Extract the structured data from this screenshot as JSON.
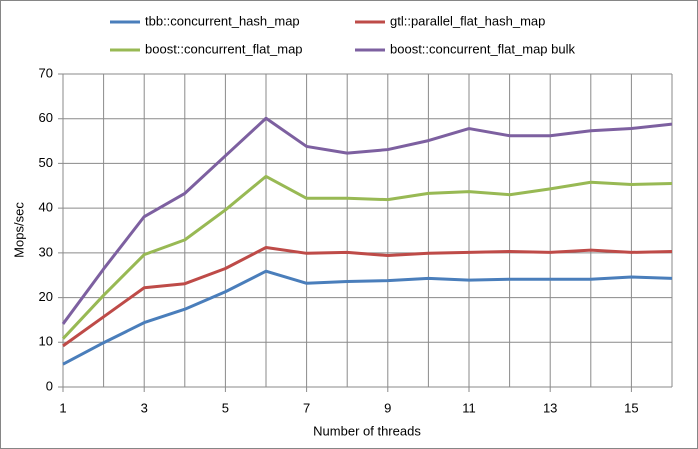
{
  "chart_data": {
    "type": "line",
    "xlabel": "Number of threads",
    "ylabel": "Mops/sec",
    "x": [
      1,
      2,
      3,
      4,
      5,
      6,
      7,
      8,
      9,
      10,
      11,
      12,
      13,
      14,
      15,
      16
    ],
    "xlim": [
      1,
      16
    ],
    "xticks": [
      1,
      3,
      5,
      7,
      9,
      11,
      13,
      15
    ],
    "ylim": [
      0,
      70
    ],
    "yticks": [
      0,
      10,
      20,
      30,
      40,
      50,
      60,
      70
    ],
    "grid": true,
    "series": [
      {
        "name": "tbb::concurrent_hash_map",
        "color": "#4a7ebb",
        "values": [
          5.1,
          9.9,
          14.4,
          17.4,
          21.3,
          25.9,
          23.2,
          23.6,
          23.8,
          24.3,
          23.9,
          24.1,
          24.1,
          24.1,
          24.6,
          24.3
        ]
      },
      {
        "name": "gtl::parallel_flat_hash_map",
        "color": "#be4b48",
        "values": [
          9.2,
          15.7,
          22.2,
          23.1,
          26.5,
          31.2,
          29.9,
          30.1,
          29.4,
          29.9,
          30.1,
          30.3,
          30.1,
          30.6,
          30.1,
          30.3
        ]
      },
      {
        "name": "boost::concurrent_flat_map",
        "color": "#98b954",
        "values": [
          10.8,
          20.5,
          29.6,
          32.9,
          39.6,
          47.1,
          42.2,
          42.2,
          41.9,
          43.3,
          43.7,
          43.0,
          44.3,
          45.8,
          45.3,
          45.5
        ]
      },
      {
        "name": "boost::concurrent_flat_map bulk",
        "color": "#7d60a0",
        "values": [
          14.1,
          26.4,
          38.1,
          43.3,
          51.7,
          60.1,
          53.8,
          52.3,
          53.1,
          55.1,
          57.8,
          56.2,
          56.2,
          57.3,
          57.8,
          58.8
        ]
      }
    ]
  }
}
